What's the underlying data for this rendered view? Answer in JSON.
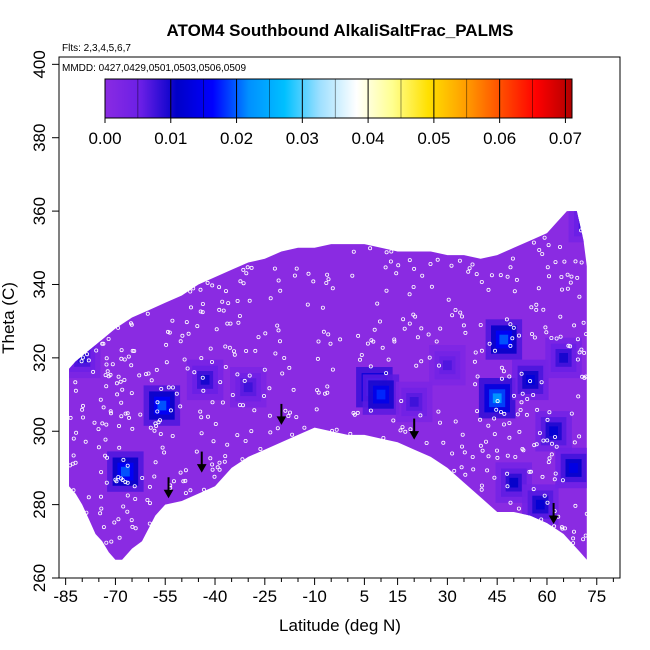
{
  "chart_data": {
    "type": "heatmap",
    "title": "ATOM4 Southbound AlkaliSaltFrac_PALMS",
    "subtitle_flights": "Flts: 2,3,4,5,6,7",
    "subtitle_dates": "MMDD: 0427,0429,0501,0503,0506,0509",
    "xlabel": "Latitude (deg N)",
    "ylabel": "Theta (C)",
    "xlim": [
      -87,
      82
    ],
    "ylim": [
      260,
      402
    ],
    "x_ticks": [
      -85,
      -70,
      -55,
      -40,
      -25,
      -10,
      5,
      15,
      30,
      45,
      60,
      75
    ],
    "x_tick_labels": [
      "-85",
      "-70",
      "-55",
      "-40",
      "-25",
      "-10",
      "5",
      "15",
      "30",
      "45",
      "60",
      "75"
    ],
    "y_ticks": [
      260,
      280,
      300,
      320,
      340,
      360,
      380,
      400
    ],
    "y_tick_labels": [
      "260",
      "280",
      "300",
      "320",
      "340",
      "360",
      "380",
      "400"
    ],
    "colorbar": {
      "min": 0.0,
      "max": 0.071,
      "ticks": [
        0.0,
        0.01,
        0.02,
        0.03,
        0.04,
        0.05,
        0.06,
        0.07
      ],
      "tick_labels": [
        "0.00",
        "0.01",
        "0.02",
        "0.03",
        "0.04",
        "0.05",
        "0.06",
        "0.07"
      ],
      "stops": [
        "#8a2be2",
        "#6a1fe6",
        "#0000c8",
        "#0000ff",
        "#0090ff",
        "#00c0ff",
        "#a0e0ff",
        "#ffffff",
        "#ffff90",
        "#ffe000",
        "#ffa000",
        "#ff5000",
        "#ff0000",
        "#b00000"
      ]
    },
    "background_value": 0.003,
    "background_color": "#8a2be2",
    "domain_upper": [
      [
        -84,
        317
      ],
      [
        -82,
        319
      ],
      [
        -78,
        322
      ],
      [
        -74,
        325
      ],
      [
        -70,
        328
      ],
      [
        -65,
        331
      ],
      [
        -60,
        333
      ],
      [
        -55,
        335
      ],
      [
        -50,
        337
      ],
      [
        -45,
        340
      ],
      [
        -40,
        342
      ],
      [
        -35,
        344
      ],
      [
        -30,
        346
      ],
      [
        -25,
        347
      ],
      [
        -20,
        349
      ],
      [
        -15,
        350
      ],
      [
        -10,
        350
      ],
      [
        -5,
        351
      ],
      [
        0,
        351
      ],
      [
        5,
        351
      ],
      [
        10,
        350
      ],
      [
        15,
        349
      ],
      [
        20,
        349
      ],
      [
        25,
        349
      ],
      [
        30,
        348
      ],
      [
        35,
        348
      ],
      [
        40,
        347
      ],
      [
        45,
        348
      ],
      [
        50,
        350
      ],
      [
        55,
        352
      ],
      [
        60,
        354
      ],
      [
        63,
        357
      ],
      [
        66,
        360
      ],
      [
        69,
        360
      ],
      [
        71,
        352
      ],
      [
        72,
        345
      ],
      [
        72,
        290
      ]
    ],
    "domain_lower": [
      [
        72,
        265
      ],
      [
        70,
        267
      ],
      [
        65,
        272
      ],
      [
        60,
        275
      ],
      [
        55,
        277
      ],
      [
        50,
        278
      ],
      [
        45,
        278
      ],
      [
        40,
        282
      ],
      [
        35,
        286
      ],
      [
        30,
        290
      ],
      [
        25,
        293
      ],
      [
        20,
        295
      ],
      [
        15,
        297
      ],
      [
        10,
        298
      ],
      [
        5,
        299
      ],
      [
        0,
        299
      ],
      [
        -5,
        300
      ],
      [
        -10,
        301
      ],
      [
        -15,
        299
      ],
      [
        -20,
        297
      ],
      [
        -25,
        295
      ],
      [
        -30,
        293
      ],
      [
        -35,
        290
      ],
      [
        -40,
        285
      ],
      [
        -45,
        283
      ],
      [
        -50,
        281
      ],
      [
        -55,
        280
      ],
      [
        -58,
        277
      ],
      [
        -62,
        270
      ],
      [
        -65,
        268
      ],
      [
        -68,
        265
      ],
      [
        -70,
        265
      ],
      [
        -72,
        267
      ],
      [
        -74,
        270
      ],
      [
        -76,
        272
      ],
      [
        -78,
        276
      ],
      [
        -80,
        280
      ],
      [
        -82,
        283
      ],
      [
        -84,
        285
      ]
    ],
    "hotspots": [
      {
        "lat": -56,
        "theta": 307,
        "value": 0.02
      },
      {
        "lat": -67,
        "theta": 289,
        "value": 0.02
      },
      {
        "lat": 8,
        "theta": 312,
        "value": 0.023
      },
      {
        "lat": 10,
        "theta": 310,
        "value": 0.018
      },
      {
        "lat": 45,
        "theta": 309,
        "value": 0.024
      },
      {
        "lat": 47,
        "theta": 325,
        "value": 0.02
      },
      {
        "lat": 55,
        "theta": 314,
        "value": 0.013
      },
      {
        "lat": 62,
        "theta": 300,
        "value": 0.012
      },
      {
        "lat": 68,
        "theta": 290,
        "value": 0.014
      },
      {
        "lat": 50,
        "theta": 286,
        "value": 0.011
      },
      {
        "lat": -43,
        "theta": 314,
        "value": 0.01
      },
      {
        "lat": 65,
        "theta": 320,
        "value": 0.01
      },
      {
        "lat": -30,
        "theta": 312,
        "value": 0.008
      },
      {
        "lat": 20,
        "theta": 308,
        "value": 0.008
      },
      {
        "lat": -80,
        "theta": 320,
        "value": 0.009
      },
      {
        "lat": 30,
        "theta": 318,
        "value": 0.007
      },
      {
        "lat": 58,
        "theta": 280,
        "value": 0.012
      },
      {
        "lat": 72,
        "theta": 357,
        "value": 0.01
      }
    ],
    "tropopause_arrows": [
      {
        "lat": -54,
        "theta": 282
      },
      {
        "lat": -44,
        "theta": 289
      },
      {
        "lat": -20,
        "theta": 302
      },
      {
        "lat": 20,
        "theta": 298
      },
      {
        "lat": 62,
        "theta": 275
      }
    ],
    "sample_count": 520,
    "grid": false
  }
}
